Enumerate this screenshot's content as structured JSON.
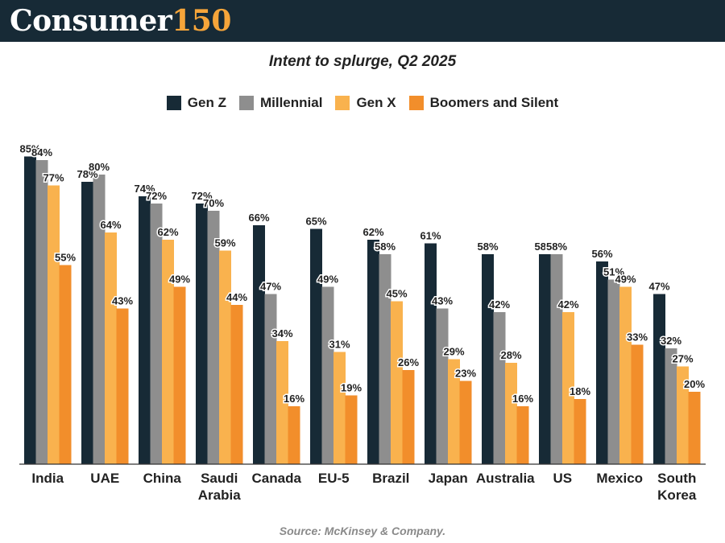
{
  "brand": {
    "word": "Consumer",
    "number": "150"
  },
  "source": "Source: McKinsey & Company.",
  "colors": {
    "header_bg": "#172a36",
    "gen_z": "#172a36",
    "millennial": "#8e8e8e",
    "gen_x": "#f9b24e",
    "boomers": "#f28e2b"
  },
  "chart_data": {
    "type": "bar",
    "title": "Intent to splurge, Q2 2025",
    "xlabel": "",
    "ylabel": "",
    "ylim": [
      0,
      100
    ],
    "grid": false,
    "legend_position": "top-center",
    "value_suffix": "%",
    "categories": [
      "India",
      "UAE",
      "China",
      "Saudi\nArabia",
      "Canada",
      "EU-5",
      "Brazil",
      "Japan",
      "Australia",
      "US",
      "Mexico",
      "South\nKorea"
    ],
    "series": [
      {
        "name": "Gen Z",
        "color": "#172a36",
        "values": [
          85,
          78,
          74,
          72,
          66,
          65,
          62,
          61,
          58,
          58,
          56,
          47
        ]
      },
      {
        "name": "Millennial",
        "color": "#8e8e8e",
        "values": [
          84,
          80,
          72,
          70,
          47,
          49,
          58,
          43,
          42,
          58,
          51,
          32
        ]
      },
      {
        "name": "Gen X",
        "color": "#f9b24e",
        "values": [
          77,
          64,
          62,
          59,
          34,
          31,
          45,
          29,
          28,
          42,
          49,
          27
        ]
      },
      {
        "name": "Boomers and Silent",
        "color": "#f28e2b",
        "values": [
          55,
          43,
          49,
          44,
          16,
          19,
          26,
          23,
          16,
          18,
          33,
          20
        ]
      }
    ]
  }
}
